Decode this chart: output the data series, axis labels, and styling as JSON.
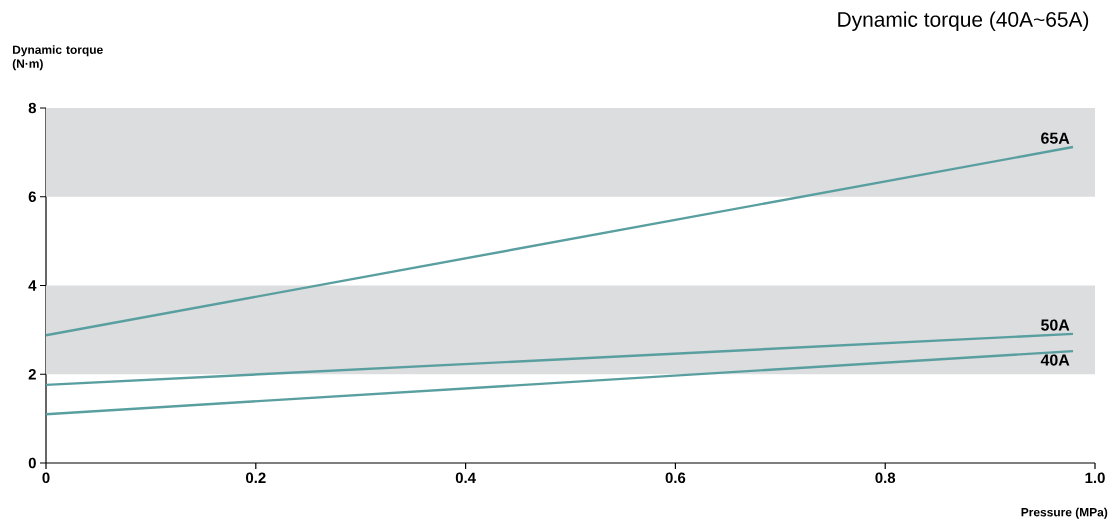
{
  "chart_data": {
    "type": "line",
    "title": "Dynamic torque (40A~65A)",
    "ylabel": "Dynamic torque (N·m)",
    "xlabel": "Pressure (MPa)",
    "xlim": [
      0,
      1.0
    ],
    "ylim": [
      0,
      8
    ],
    "xticks": [
      0,
      0.2,
      0.4,
      0.6,
      0.8,
      {
        "value": 1.0,
        "label": "1.0"
      }
    ],
    "yticks": [
      0,
      2,
      4,
      6,
      8
    ],
    "bands": [
      {
        "axis": "y",
        "from": 2,
        "to": 4,
        "color": "#dcdddf"
      },
      {
        "axis": "y",
        "from": 6,
        "to": 8,
        "color": "#dcdddf"
      }
    ],
    "grid": false,
    "x": [
      0,
      0.979
    ],
    "series": [
      {
        "name": "65A",
        "color": "#5a9fa0",
        "values": [
          2.88,
          7.12
        ]
      },
      {
        "name": "50A",
        "color": "#5a9fa0",
        "values": [
          1.76,
          2.91
        ]
      },
      {
        "name": "40A",
        "color": "#5a9fa0",
        "values": [
          1.1,
          2.52
        ]
      }
    ]
  }
}
